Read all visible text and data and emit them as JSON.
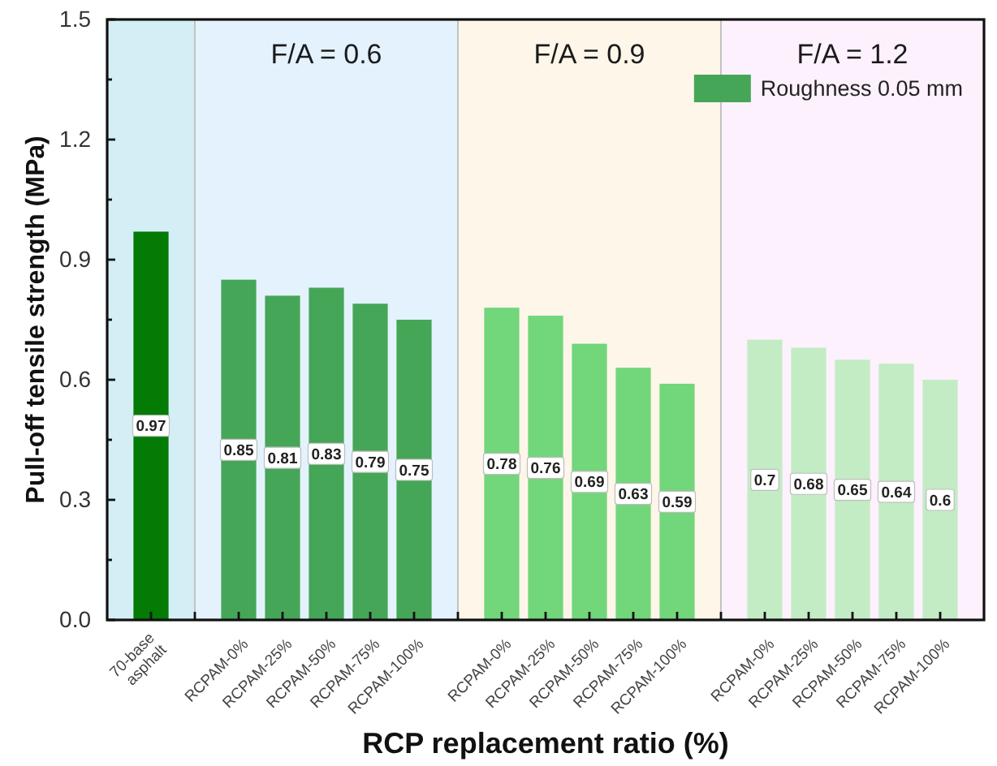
{
  "chart_data": {
    "type": "bar",
    "categories": [
      "70-base asphalt",
      null,
      "RCPAM-0%",
      "RCPAM-25%",
      "RCPAM-50%",
      "RCPAM-75%",
      "RCPAM-100%",
      null,
      "RCPAM-0%",
      "RCPAM-25%",
      "RCPAM-50%",
      "RCPAM-75%",
      "RCPAM-100%",
      null,
      "RCPAM-0%",
      "RCPAM-25%",
      "RCPAM-50%",
      "RCPAM-75%",
      "RCPAM-100%"
    ],
    "series": [
      {
        "name": "Roughness 0.05 mm",
        "color": "#46a657",
        "colors": [
          "#037b05",
          null,
          "#46a657",
          "#46a657",
          "#46a657",
          "#46a657",
          "#46a657",
          null,
          "#72d67b",
          "#72d67b",
          "#72d67b",
          "#72d67b",
          "#72d67b",
          null,
          "#c3ecc5",
          "#c3ecc5",
          "#c3ecc5",
          "#c3ecc5",
          "#c3ecc5"
        ],
        "values": [
          0.97,
          null,
          0.85,
          0.81,
          0.83,
          0.79,
          0.75,
          null,
          0.78,
          0.76,
          0.69,
          0.63,
          0.59,
          null,
          0.7,
          0.68,
          0.65,
          0.64,
          0.6
        ]
      }
    ],
    "xlabel": "RCP replacement ratio (%)",
    "ylabel": "Pull-off tensile strength (MPa)",
    "ylim": [
      0,
      1.5
    ],
    "yticks": [
      {
        "value": 0,
        "label": "0.0"
      },
      {
        "value": 0.15,
        "label": null
      },
      0.3,
      {
        "value": 0.45,
        "label": null
      },
      0.6,
      {
        "value": 0.75,
        "label": null
      },
      0.9,
      {
        "value": 1.05,
        "label": null
      },
      1.2,
      {
        "value": 1.35,
        "label": null
      },
      1.5
    ],
    "annotations": [
      "F/A = 0.6",
      "F/A = 0.9",
      "F/A = 1.2"
    ],
    "legend": "top right",
    "data_labels": true
  }
}
